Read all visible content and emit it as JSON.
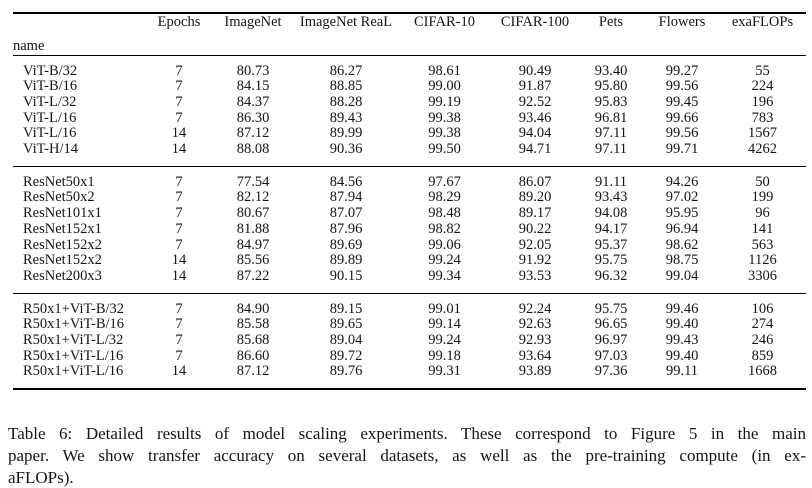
{
  "table": {
    "columns": [
      "name",
      "Epochs",
      "ImageNet",
      "ImageNet ReaL",
      "CIFAR-10",
      "CIFAR-100",
      "Pets",
      "Flowers",
      "exaFLOPs"
    ],
    "groups": [
      {
        "name": "vit-models",
        "rows": [
          [
            "ViT-B/32",
            "7",
            "80.73",
            "86.27",
            "98.61",
            "90.49",
            "93.40",
            "99.27",
            "55"
          ],
          [
            "ViT-B/16",
            "7",
            "84.15",
            "88.85",
            "99.00",
            "91.87",
            "95.80",
            "99.56",
            "224"
          ],
          [
            "ViT-L/32",
            "7",
            "84.37",
            "88.28",
            "99.19",
            "92.52",
            "95.83",
            "99.45",
            "196"
          ],
          [
            "ViT-L/16",
            "7",
            "86.30",
            "89.43",
            "99.38",
            "93.46",
            "96.81",
            "99.66",
            "783"
          ],
          [
            "ViT-L/16",
            "14",
            "87.12",
            "89.99",
            "99.38",
            "94.04",
            "97.11",
            "99.56",
            "1567"
          ],
          [
            "ViT-H/14",
            "14",
            "88.08",
            "90.36",
            "99.50",
            "94.71",
            "97.11",
            "99.71",
            "4262"
          ]
        ]
      },
      {
        "name": "resnet-models",
        "rows": [
          [
            "ResNet50x1",
            "7",
            "77.54",
            "84.56",
            "97.67",
            "86.07",
            "91.11",
            "94.26",
            "50"
          ],
          [
            "ResNet50x2",
            "7",
            "82.12",
            "87.94",
            "98.29",
            "89.20",
            "93.43",
            "97.02",
            "199"
          ],
          [
            "ResNet101x1",
            "7",
            "80.67",
            "87.07",
            "98.48",
            "89.17",
            "94.08",
            "95.95",
            "96"
          ],
          [
            "ResNet152x1",
            "7",
            "81.88",
            "87.96",
            "98.82",
            "90.22",
            "94.17",
            "96.94",
            "141"
          ],
          [
            "ResNet152x2",
            "7",
            "84.97",
            "89.69",
            "99.06",
            "92.05",
            "95.37",
            "98.62",
            "563"
          ],
          [
            "ResNet152x2",
            "14",
            "85.56",
            "89.89",
            "99.24",
            "91.92",
            "95.75",
            "98.75",
            "1126"
          ],
          [
            "ResNet200x3",
            "14",
            "87.22",
            "90.15",
            "99.34",
            "93.53",
            "96.32",
            "99.04",
            "3306"
          ]
        ]
      },
      {
        "name": "hybrid-models",
        "rows": [
          [
            "R50x1+ViT-B/32",
            "7",
            "84.90",
            "89.15",
            "99.01",
            "92.24",
            "95.75",
            "99.46",
            "106"
          ],
          [
            "R50x1+ViT-B/16",
            "7",
            "85.58",
            "89.65",
            "99.14",
            "92.63",
            "96.65",
            "99.40",
            "274"
          ],
          [
            "R50x1+ViT-L/32",
            "7",
            "85.68",
            "89.04",
            "99.24",
            "92.93",
            "96.97",
            "99.43",
            "246"
          ],
          [
            "R50x1+ViT-L/16",
            "7",
            "86.60",
            "89.72",
            "99.18",
            "93.64",
            "97.03",
            "99.40",
            "859"
          ],
          [
            "R50x1+ViT-L/16",
            "14",
            "87.12",
            "89.76",
            "99.31",
            "93.89",
            "97.36",
            "99.11",
            "1668"
          ]
        ]
      }
    ]
  },
  "caption": {
    "lines": [
      "Table 6: Detailed results of model scaling experiments. These correspond to Figure 5 in the main",
      "paper. We show transfer accuracy on several datasets, as well as the pre-training compute (in ex-",
      "aFLOPs)."
    ]
  }
}
